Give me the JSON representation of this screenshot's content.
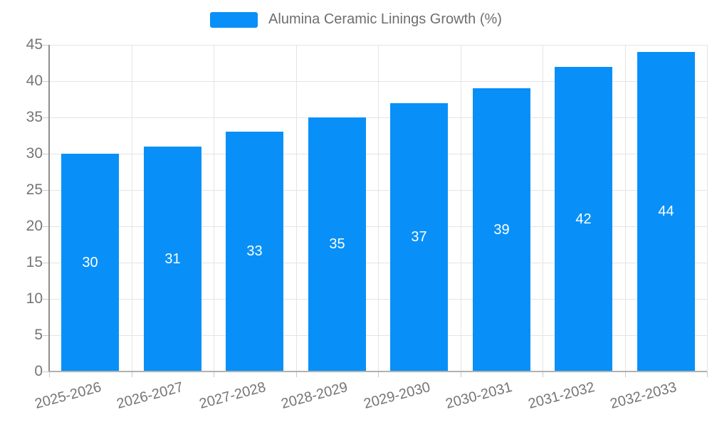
{
  "chart_data": {
    "type": "bar",
    "title": "Alumina Ceramic Linings Growth (%)",
    "legend": {
      "label": "Alumina Ceramic Linings Growth (%)",
      "position": "top"
    },
    "categories": [
      "2025-2026",
      "2026-2027",
      "2027-2028",
      "2028-2029",
      "2029-2030",
      "2030-2031",
      "2031-2032",
      "2032-2033"
    ],
    "values": [
      30,
      31,
      33,
      35,
      37,
      39,
      42,
      44
    ],
    "bar_value_labels": [
      "30",
      "31",
      "33",
      "35",
      "37",
      "39",
      "42",
      "44"
    ],
    "xlabel": "",
    "ylabel": "",
    "ylim": [
      0,
      45
    ],
    "y_ticks": [
      0,
      5,
      10,
      15,
      20,
      25,
      30,
      35,
      40,
      45
    ],
    "x_label_rotation_deg": -15,
    "grid": "horizontal and vertical light gray gridlines",
    "bar_color": "#0890f8",
    "bar_label_color": "#ffffff",
    "axis_text_color": "#757575",
    "grid_color": "#e4e4e4",
    "background_color": "#ffffff"
  }
}
